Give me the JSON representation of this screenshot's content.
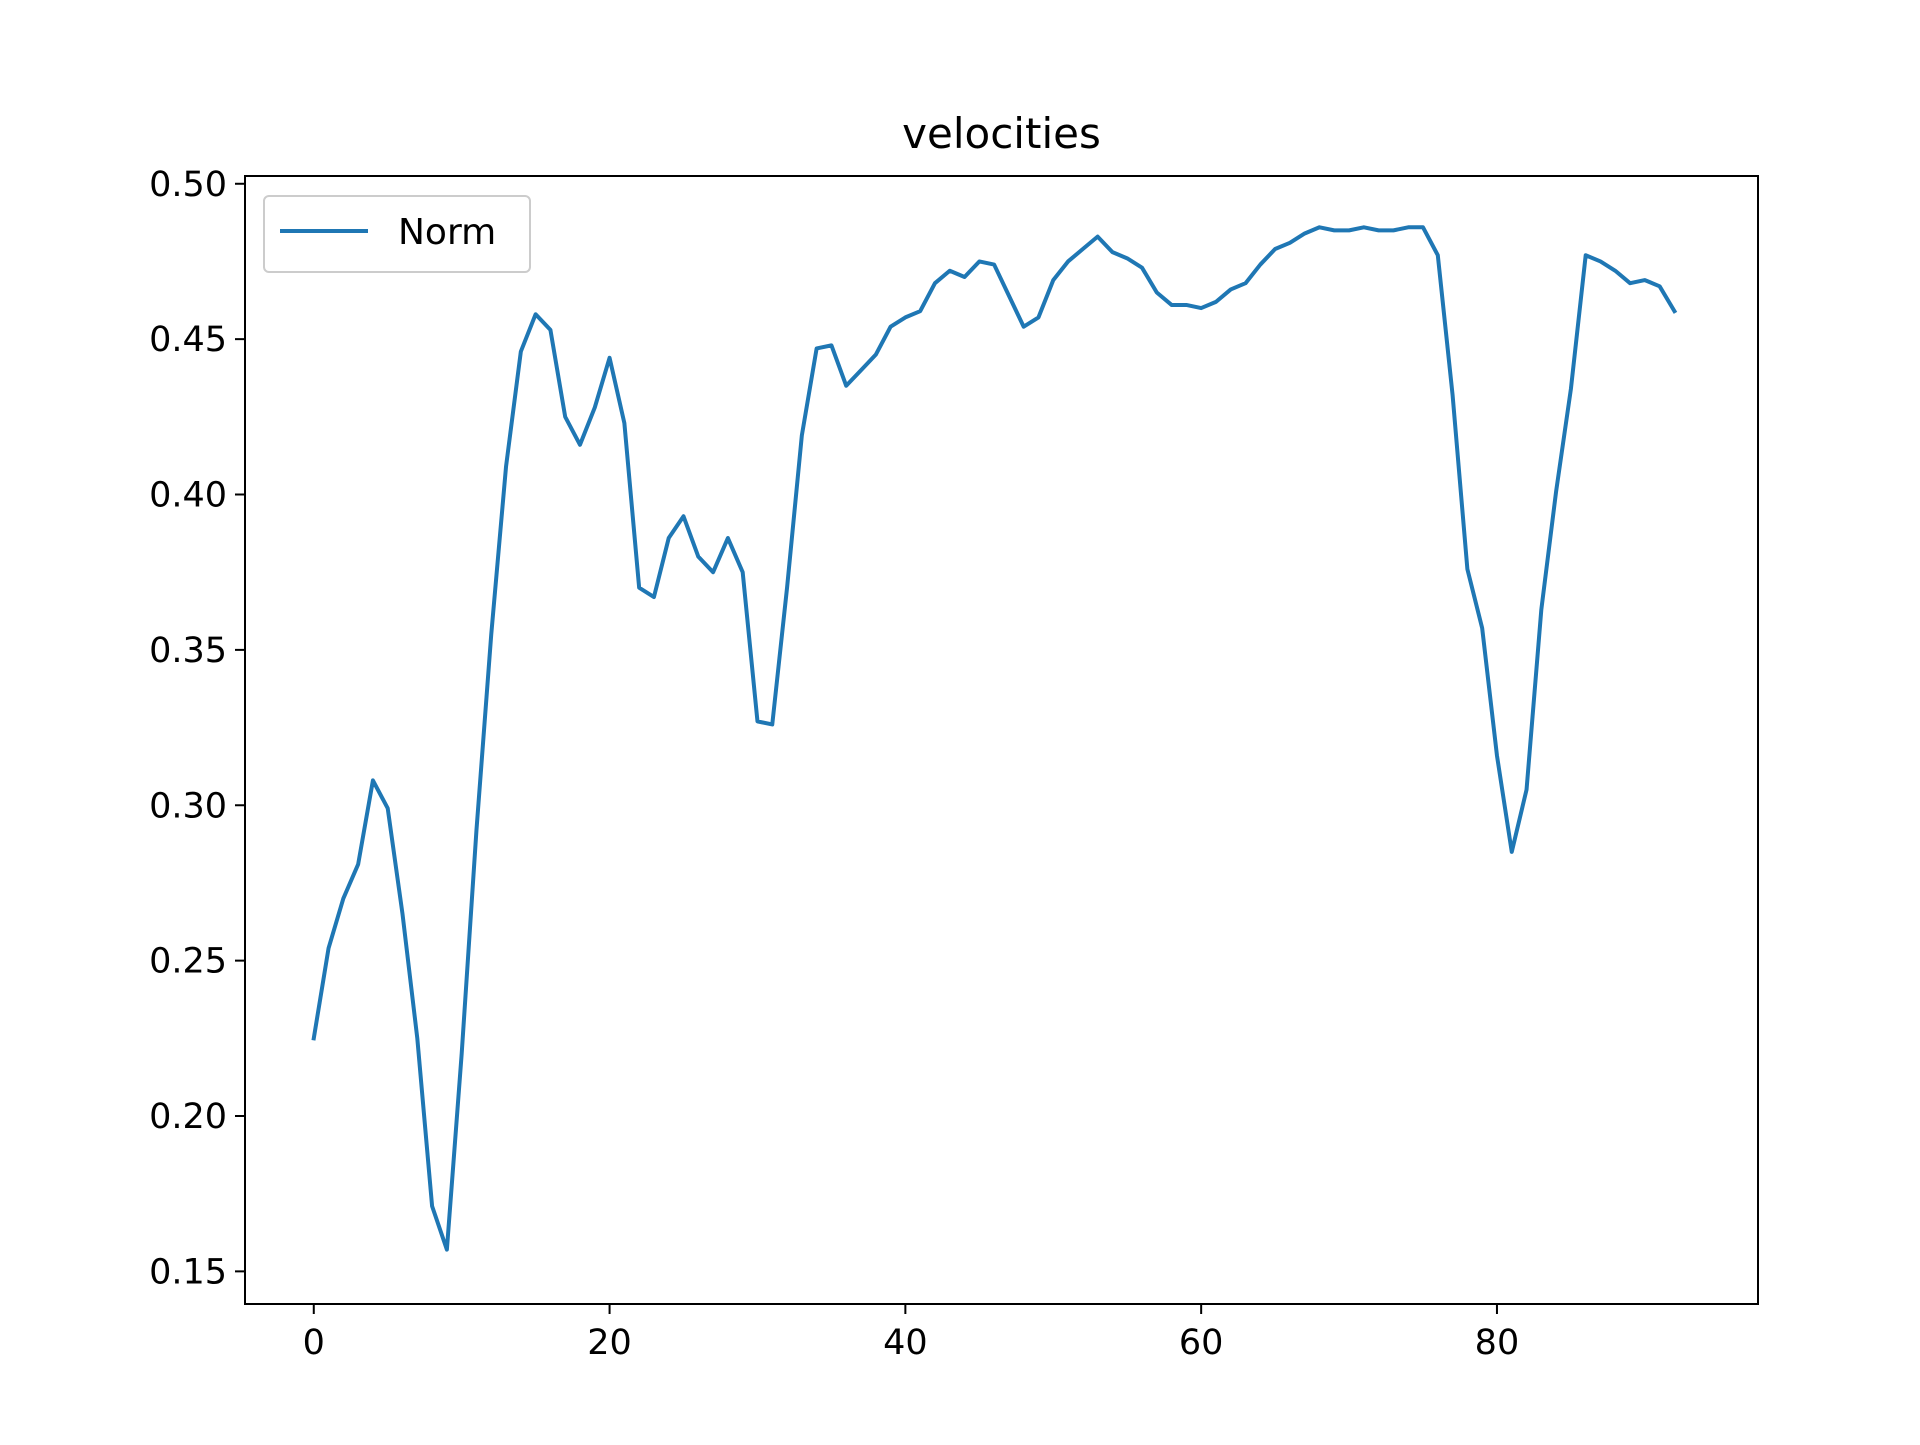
{
  "chart_data": {
    "type": "line",
    "title": "velocities",
    "xlabel": "",
    "ylabel": "",
    "xlim": [
      -4.65,
      97.65
    ],
    "ylim": [
      0.1395,
      0.5025
    ],
    "xticks": [
      0,
      20,
      40,
      60,
      80
    ],
    "xtick_labels": [
      "0",
      "20",
      "40",
      "60",
      "80"
    ],
    "yticks": [
      0.15,
      0.2,
      0.25,
      0.3,
      0.35,
      0.4,
      0.45,
      0.5
    ],
    "ytick_labels": [
      "0.15",
      "0.20",
      "0.25",
      "0.30",
      "0.35",
      "0.40",
      "0.45",
      "0.50"
    ],
    "grid": false,
    "legend_position": "upper-left",
    "series": [
      {
        "name": "Norm",
        "color": "#1f77b4",
        "x": [
          0,
          1,
          2,
          3,
          4,
          5,
          6,
          7,
          8,
          9,
          10,
          11,
          12,
          13,
          14,
          15,
          16,
          17,
          18,
          19,
          20,
          21,
          22,
          23,
          24,
          25,
          26,
          27,
          28,
          29,
          30,
          31,
          32,
          33,
          34,
          35,
          36,
          37,
          38,
          39,
          40,
          41,
          42,
          43,
          44,
          45,
          46,
          47,
          48,
          49,
          50,
          51,
          52,
          53,
          54,
          55,
          56,
          57,
          58,
          59,
          60,
          61,
          62,
          63,
          64,
          65,
          66,
          67,
          68,
          69,
          70,
          71,
          72,
          73,
          74,
          75,
          76,
          77,
          78,
          79,
          80,
          81,
          82,
          83,
          84,
          85,
          86,
          87,
          88,
          89,
          90,
          91,
          92
        ],
        "values": [
          0.225,
          0.254,
          0.27,
          0.281,
          0.308,
          0.299,
          0.265,
          0.225,
          0.171,
          0.157,
          0.22,
          0.292,
          0.355,
          0.409,
          0.446,
          0.458,
          0.453,
          0.425,
          0.416,
          0.428,
          0.444,
          0.423,
          0.37,
          0.367,
          0.386,
          0.393,
          0.38,
          0.375,
          0.386,
          0.375,
          0.327,
          0.326,
          0.37,
          0.419,
          0.447,
          0.448,
          0.435,
          0.44,
          0.445,
          0.454,
          0.457,
          0.459,
          0.468,
          0.472,
          0.47,
          0.475,
          0.474,
          0.464,
          0.454,
          0.457,
          0.469,
          0.475,
          0.479,
          0.483,
          0.478,
          0.476,
          0.473,
          0.465,
          0.461,
          0.461,
          0.46,
          0.462,
          0.466,
          0.468,
          0.474,
          0.479,
          0.481,
          0.484,
          0.486,
          0.485,
          0.485,
          0.486,
          0.485,
          0.485,
          0.486,
          0.486,
          0.477,
          0.432,
          0.376,
          0.357,
          0.316,
          0.285,
          0.305,
          0.363,
          0.401,
          0.434,
          0.477,
          0.475,
          0.472,
          0.468,
          0.469,
          0.467,
          0.459
        ]
      }
    ]
  }
}
